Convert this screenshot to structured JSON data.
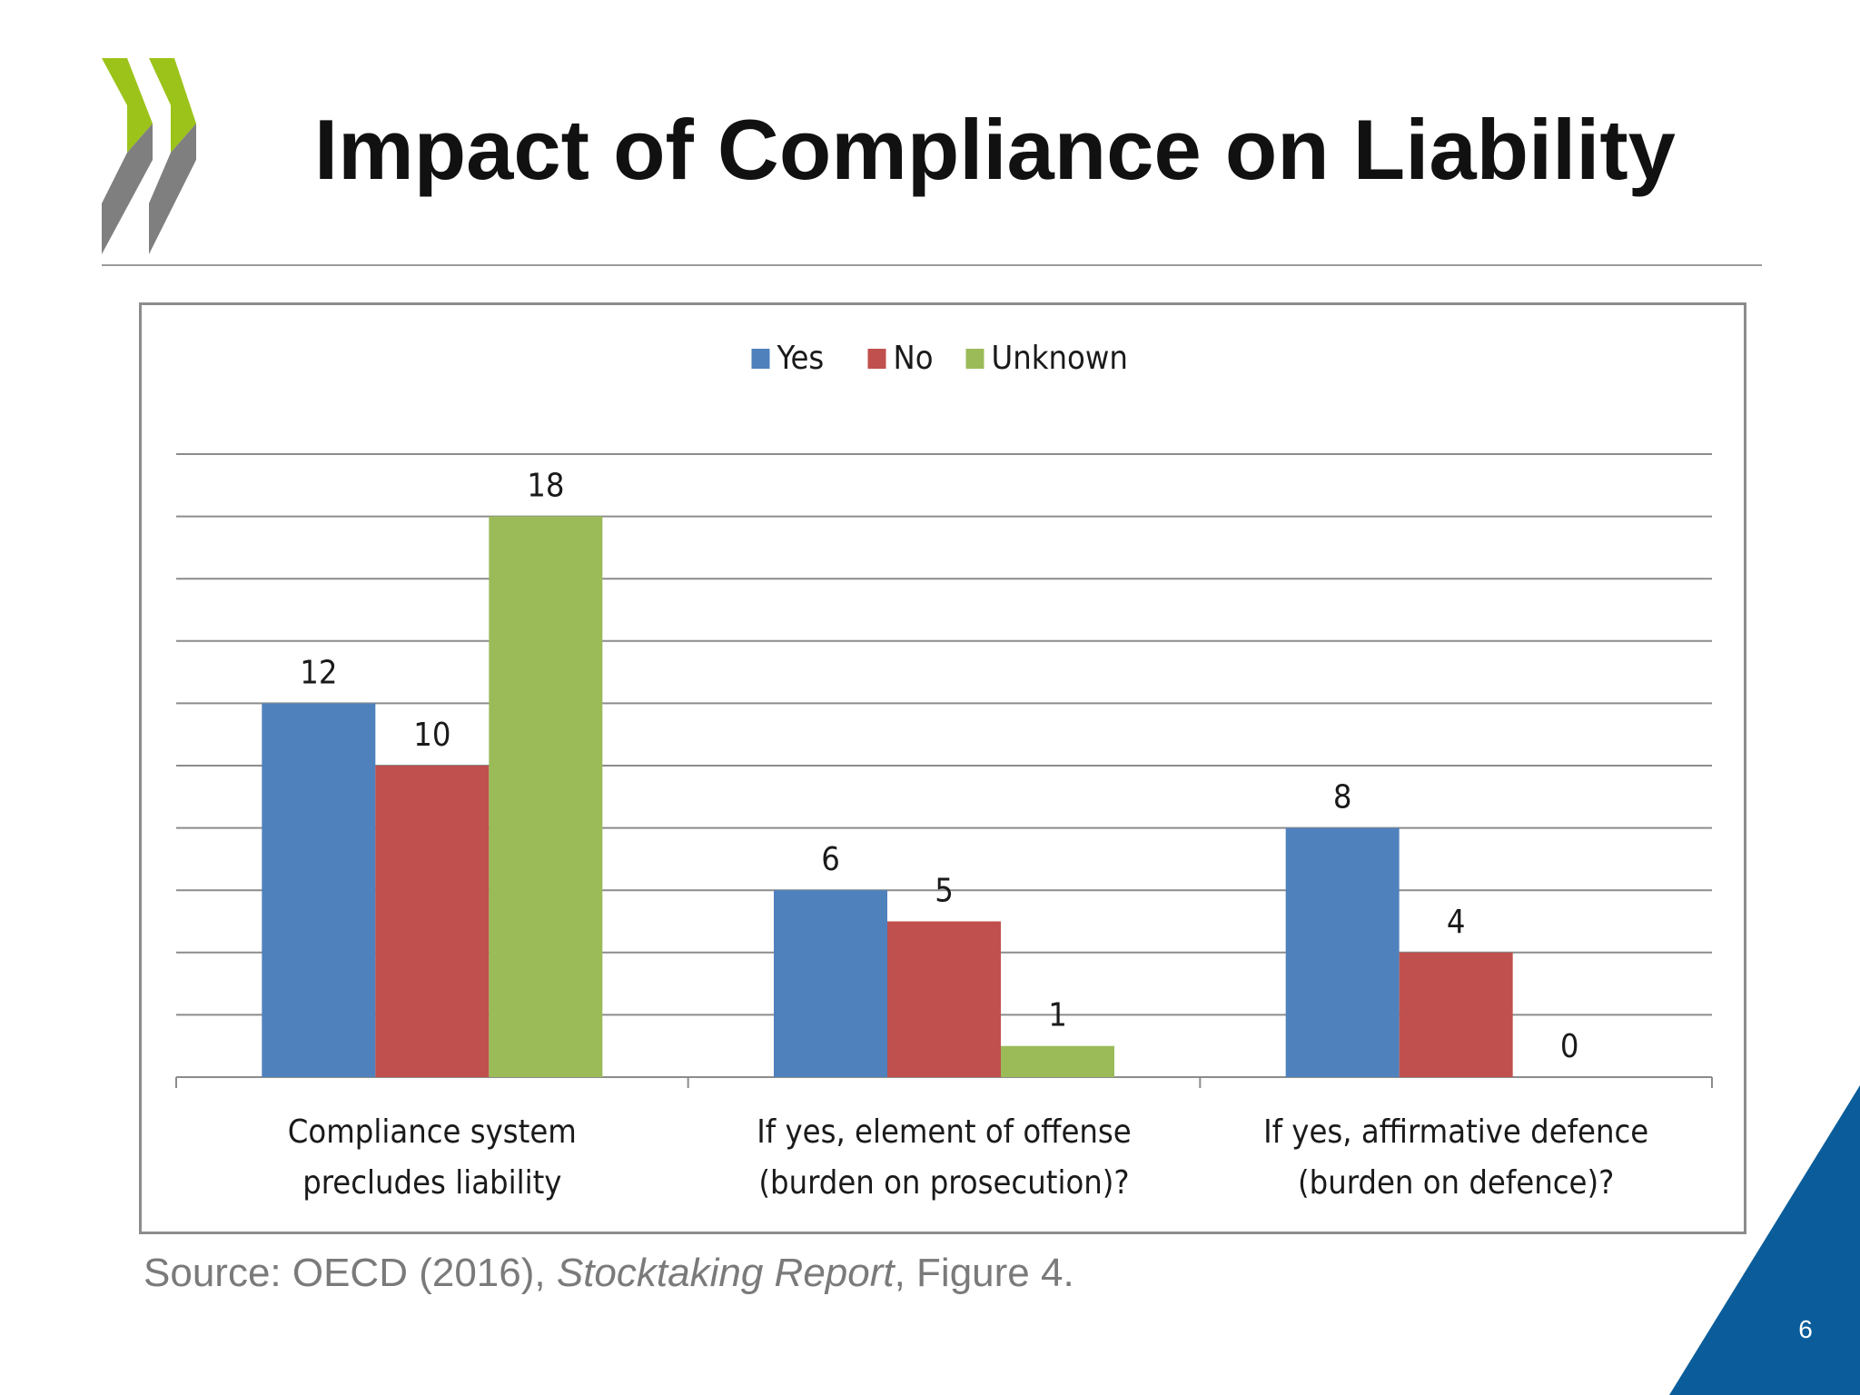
{
  "slide": {
    "title": "Impact of Compliance on Liability",
    "page_number": "6"
  },
  "source": {
    "prefix": "Source:  OECD (2016), ",
    "italic": "Stocktaking Report",
    "suffix": ", Figure 4."
  },
  "colors": {
    "yes": "#4f81bd",
    "no": "#c0504d",
    "unknown": "#9bbb59",
    "logo_green": "#9cc31a",
    "logo_grey": "#7f7f7f",
    "corner_blue": "#0a5d9a"
  },
  "icons": {
    "logo": "oecd-chevron-logo"
  },
  "chart_data": {
    "type": "bar",
    "categories": [
      [
        "Compliance system",
        "precludes liability"
      ],
      [
        "If yes, element of offense",
        "(burden on prosecution)?"
      ],
      [
        "If yes, affirmative defence",
        "(burden on defence)?"
      ]
    ],
    "series": [
      {
        "name": "Yes",
        "color": "#4f81bd",
        "values": [
          12,
          6,
          8
        ]
      },
      {
        "name": "No",
        "color": "#c0504d",
        "values": [
          10,
          5,
          4
        ]
      },
      {
        "name": "Unknown",
        "color": "#9bbb59",
        "values": [
          18,
          1,
          0
        ]
      }
    ],
    "ylim": [
      0,
      20
    ],
    "grid": true,
    "legend": "top-center",
    "data_labels": true
  }
}
